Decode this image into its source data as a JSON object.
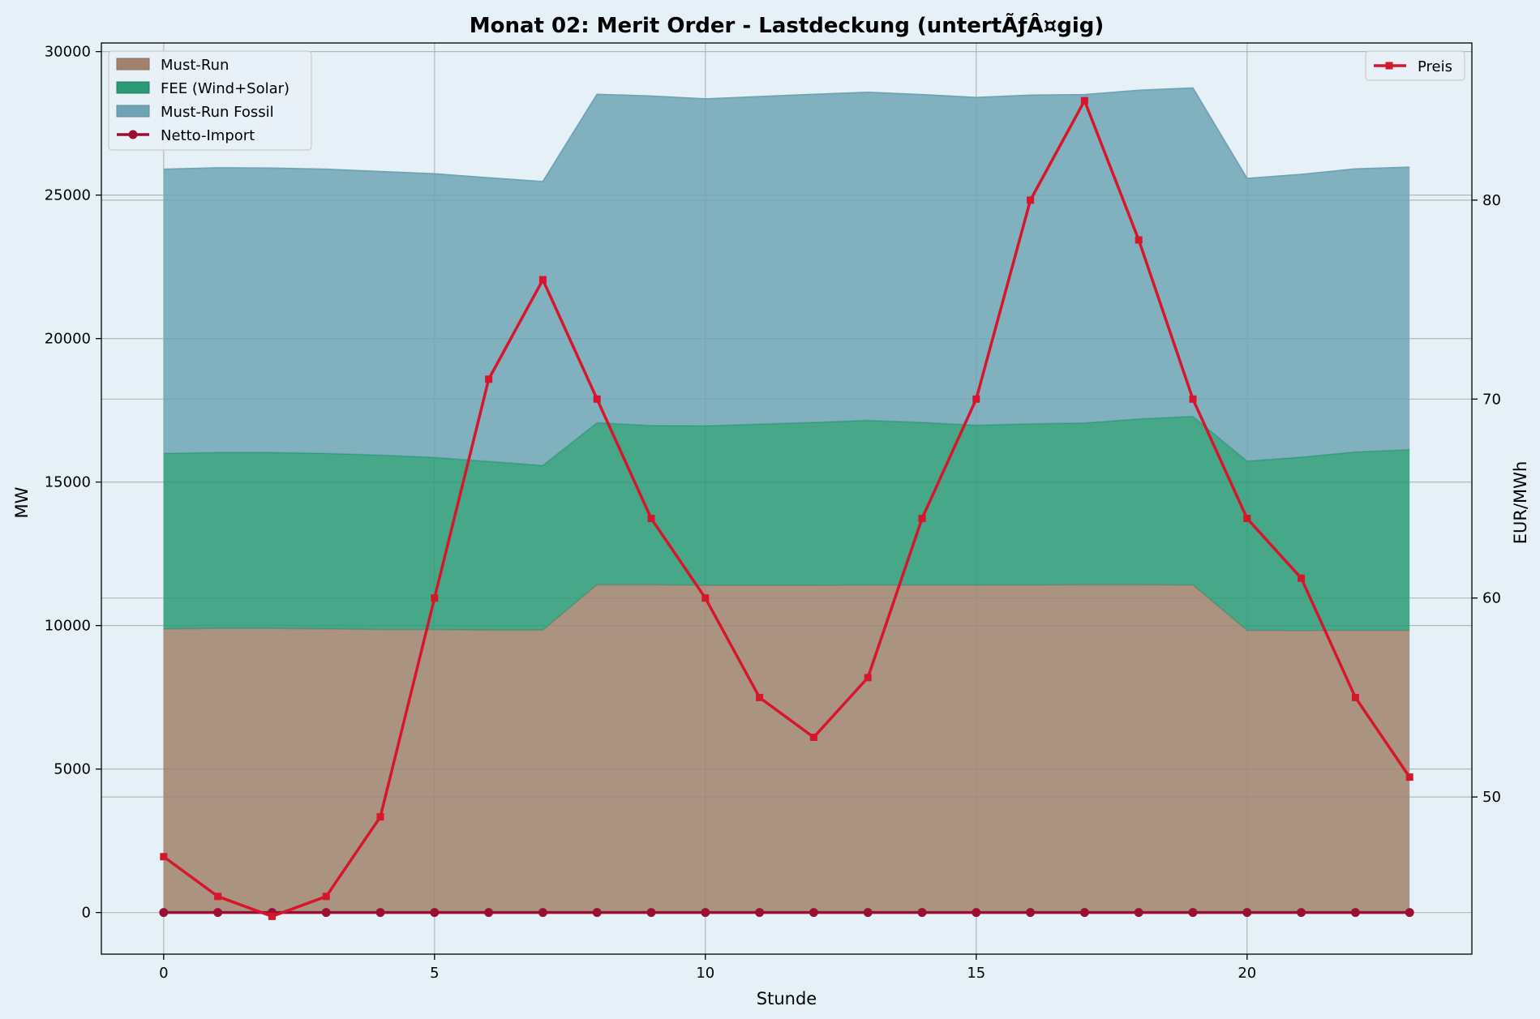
{
  "chart_data": {
    "type": "area",
    "title": "Monat 02: Merit Order - Lastdeckung (untertÃƒÂ¤gig)",
    "xlabel": "Stunde",
    "ylabel": "MW",
    "y2label": "EUR/MWh",
    "xlim": [
      -1.15,
      24.15
    ],
    "ylim": [
      -1450,
      30300
    ],
    "y2lim": [
      42.1,
      87.9
    ],
    "xticks": [
      0,
      5,
      10,
      15,
      20
    ],
    "yticks": [
      0,
      5000,
      10000,
      15000,
      20000,
      25000,
      30000
    ],
    "y2ticks": [
      50,
      60,
      70,
      80
    ],
    "grid": true,
    "x": [
      0,
      1,
      2,
      3,
      4,
      5,
      6,
      7,
      8,
      9,
      10,
      11,
      12,
      13,
      14,
      15,
      16,
      17,
      18,
      19,
      20,
      21,
      22,
      23
    ],
    "stacked_series": [
      {
        "name": "Must-Run",
        "color": "#a0826d",
        "values": [
          9880,
          9900,
          9900,
          9880,
          9860,
          9860,
          9840,
          9840,
          11420,
          11420,
          11400,
          11400,
          11400,
          11410,
          11410,
          11410,
          11410,
          11420,
          11420,
          11410,
          9830,
          9820,
          9830,
          9830
        ]
      },
      {
        "name": "FEE (Wind+Solar)",
        "color": "#2a9a76",
        "values": [
          6120,
          6130,
          6130,
          6120,
          6080,
          6000,
          5880,
          5740,
          5650,
          5550,
          5560,
          5620,
          5680,
          5740,
          5670,
          5570,
          5620,
          5640,
          5780,
          5880,
          5900,
          6050,
          6220,
          6300
        ]
      },
      {
        "name": "Must-Run Fossil",
        "color": "#6ea4b4",
        "values": [
          9900,
          9920,
          9910,
          9900,
          9880,
          9880,
          9880,
          9890,
          11440,
          11480,
          11390,
          11410,
          11430,
          11430,
          11420,
          11420,
          11450,
          11440,
          11450,
          11440,
          9850,
          9850,
          9860,
          9840
        ]
      }
    ],
    "line_series": [
      {
        "name": "Netto-Import",
        "axis": "left",
        "color": "#9b0f35",
        "values": [
          0,
          0,
          0,
          0,
          0,
          0,
          0,
          0,
          0,
          0,
          0,
          0,
          0,
          0,
          0,
          0,
          0,
          0,
          0,
          0,
          0,
          0,
          0,
          0
        ]
      },
      {
        "name": "Preis",
        "axis": "right",
        "color": "#d7152b",
        "values": [
          47,
          45,
          44,
          45,
          49,
          60,
          71,
          76,
          70,
          64,
          60,
          55,
          53,
          56,
          64,
          70,
          80,
          85,
          78,
          70,
          64,
          61,
          55,
          51
        ]
      }
    ],
    "legend_left": [
      "Must-Run",
      "FEE (Wind+Solar)",
      "Must-Run Fossil",
      "Netto-Import"
    ],
    "legend_right": [
      "Preis"
    ],
    "legend_placement": [
      "top-left",
      "top-right"
    ]
  }
}
